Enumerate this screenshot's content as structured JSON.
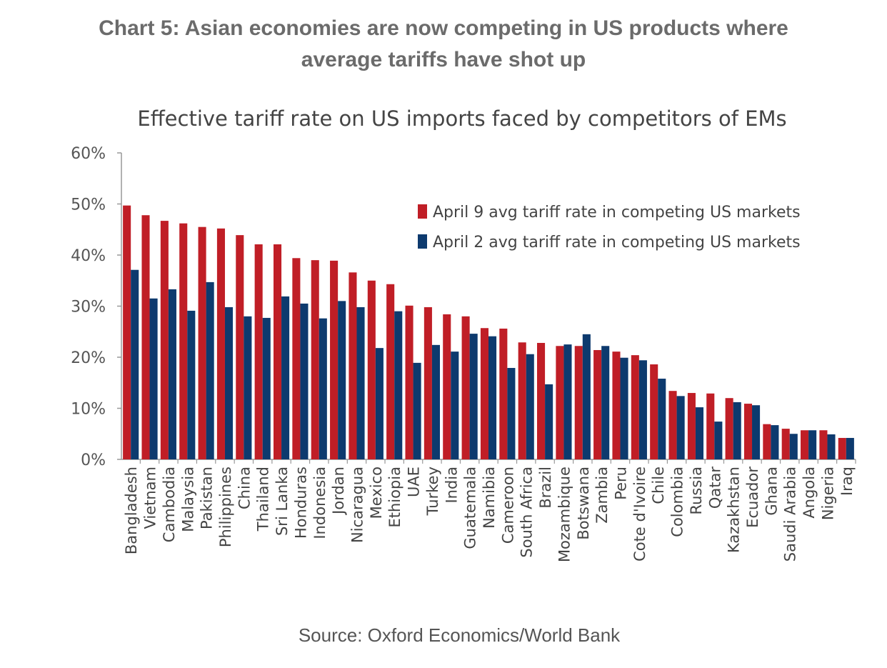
{
  "heading": {
    "line1": "Chart 5: Asian economies are now competing in US products where",
    "line2": "average tariffs have shot up"
  },
  "source": "Source: Oxford Economics/World Bank",
  "chart_data": {
    "type": "bar",
    "title": "Effective tariff rate on US imports faced by competitors of EMs",
    "xlabel": "",
    "ylabel": "",
    "ylim": [
      0,
      60
    ],
    "yticks": [
      "0%",
      "10%",
      "20%",
      "30%",
      "40%",
      "50%",
      "60%"
    ],
    "grid": false,
    "legend_position": "top-right",
    "categories": [
      "Bangladesh",
      "Vietnam",
      "Cambodia",
      "Malaysia",
      "Pakistan",
      "Philippines",
      "China",
      "Thailand",
      "Sri Lanka",
      "Honduras",
      "Indonesia",
      "Jordan",
      "Nicaragua",
      "Mexico",
      "Ethiopia",
      "UAE",
      "Turkey",
      "India",
      "Guatemala",
      "Namibia",
      "Cameroon",
      "South Africa",
      "Brazil",
      "Mozambique",
      "Botswana",
      "Zambia",
      "Peru",
      "Cote d'Ivoire",
      "Chile",
      "Colombia",
      "Russia",
      "Qatar",
      "Kazakhstan",
      "Ecuador",
      "Ghana",
      "Saudi Arabia",
      "Angola",
      "Nigeria",
      "Iraq"
    ],
    "series": [
      {
        "name": "April 9 avg tariff rate in competing US markets",
        "color": "#c01e26",
        "values": [
          49.7,
          47.8,
          46.7,
          46.2,
          45.5,
          45.2,
          43.9,
          42.1,
          42.1,
          39.4,
          39.0,
          38.9,
          36.6,
          35.0,
          34.3,
          30.1,
          29.8,
          28.4,
          28.0,
          25.7,
          25.6,
          22.9,
          22.8,
          22.2,
          22.2,
          21.4,
          21.1,
          20.4,
          18.6,
          13.4,
          13.0,
          12.9,
          12.0,
          10.9,
          6.9,
          6.0,
          5.7,
          5.7,
          4.2
        ]
      },
      {
        "name": "April 2 avg tariff rate in competing US markets",
        "color": "#0d3a6e",
        "values": [
          37.1,
          31.5,
          33.3,
          29.1,
          34.7,
          29.8,
          28.0,
          27.7,
          31.9,
          30.5,
          27.6,
          31.0,
          29.8,
          21.8,
          29.0,
          18.9,
          22.4,
          21.1,
          24.6,
          24.1,
          17.9,
          20.6,
          14.7,
          22.5,
          24.5,
          22.2,
          19.9,
          19.4,
          15.8,
          12.4,
          10.2,
          7.4,
          11.2,
          10.6,
          6.7,
          5.0,
          5.7,
          4.9,
          4.2
        ]
      }
    ]
  }
}
